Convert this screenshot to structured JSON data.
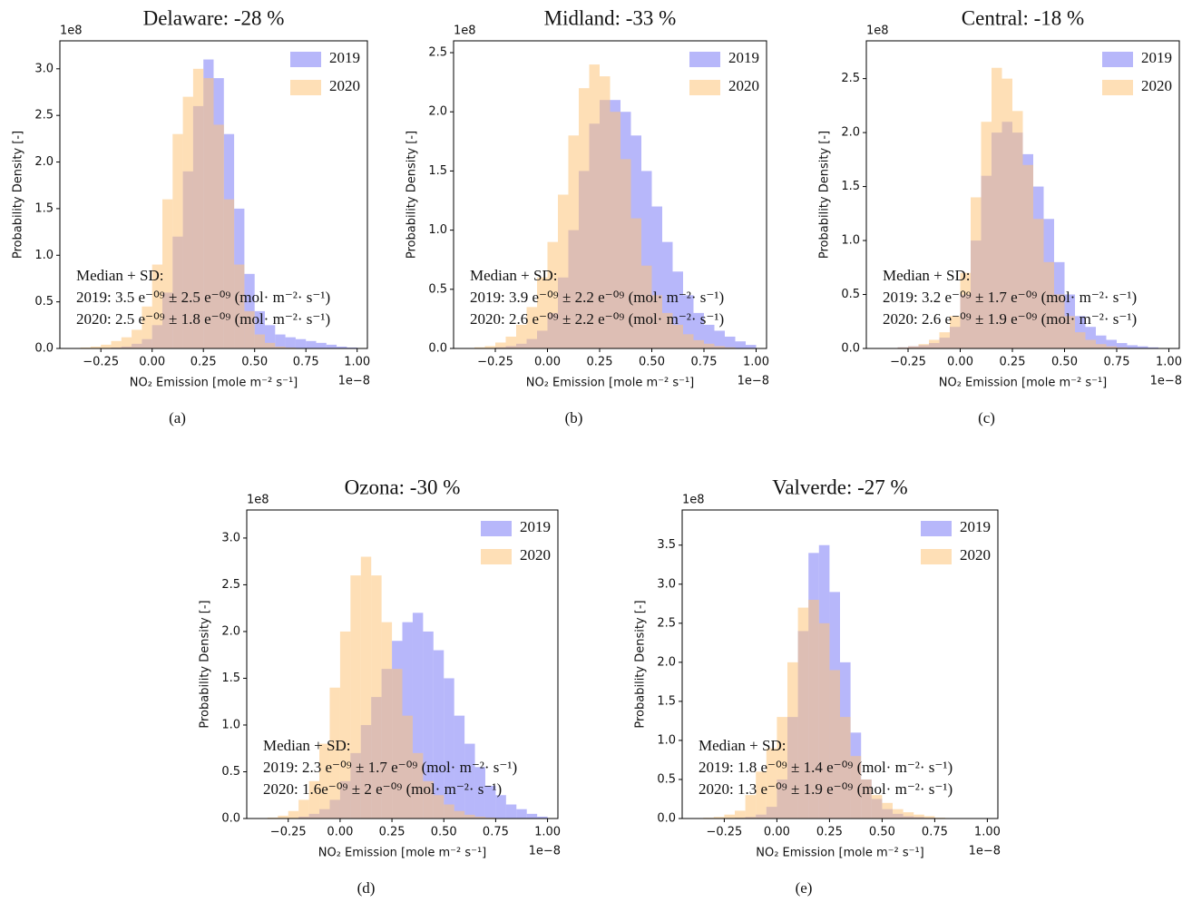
{
  "chart_data": [
    {
      "type": "histogram",
      "title": "Delaware: -28 %",
      "caption": "(a)",
      "x_label": "NO₂ Emission [mole m⁻² s⁻¹]",
      "y_label": "Probability Density [-]",
      "x_offset": "1e−8",
      "y_offset": "1e8",
      "legend": "upper right",
      "annotation": [
        "Median + SD:",
        "2019: 3.5 e⁻⁰⁹ ± 2.5 e⁻⁰⁹ (mol· m⁻²· s⁻¹)",
        "2020: 2.5 e⁻⁰⁹ ± 1.8 e⁻⁰⁹ (mol· m⁻²· s⁻¹)"
      ],
      "bins": [
        -0.4,
        -0.35,
        -0.3,
        -0.25,
        -0.2,
        -0.15,
        -0.1,
        -0.05,
        0,
        0.05,
        0.1,
        0.15,
        0.2,
        0.25,
        0.3,
        0.35,
        0.4,
        0.45,
        0.5,
        0.55,
        0.6,
        0.65,
        0.7,
        0.75,
        0.8,
        0.85,
        0.9,
        0.95,
        1.0
      ],
      "series": [
        {
          "name": "2019",
          "color": "#7b7bf5",
          "values": [
            0,
            0,
            0,
            0,
            0.01,
            0.02,
            0.05,
            0.1,
            0.25,
            0.6,
            1.2,
            1.9,
            2.6,
            3.1,
            2.9,
            2.3,
            1.5,
            0.8,
            0.4,
            0.25,
            0.15,
            0.12,
            0.1,
            0.08,
            0.06,
            0.04,
            0.02,
            0.01
          ]
        },
        {
          "name": "2020",
          "color": "#fdc57a",
          "values": [
            0,
            0.01,
            0.02,
            0.04,
            0.08,
            0.12,
            0.2,
            0.45,
            0.9,
            1.6,
            2.3,
            2.7,
            3.0,
            2.9,
            2.4,
            1.6,
            0.9,
            0.4,
            0.15,
            0.06,
            0.02,
            0.01,
            0,
            0,
            0,
            0,
            0,
            0
          ]
        }
      ],
      "xlim": [
        -0.45,
        1.05
      ],
      "ylim": [
        0,
        3.3
      ],
      "xticks": [
        {
          "value": -0.25,
          "label": "−0.25"
        },
        {
          "value": 0,
          "label": "0.00"
        },
        0.25,
        {
          "value": 0.5,
          "label": "0.50"
        },
        0.75,
        {
          "value": 1,
          "label": "1.00"
        }
      ],
      "yticks": [
        {
          "value": 0,
          "label": "0.0"
        },
        0.5,
        {
          "value": 1,
          "label": "1.0"
        },
        1.5,
        {
          "value": 2,
          "label": "2.0"
        },
        2.5,
        {
          "value": 3,
          "label": "3.0"
        }
      ]
    },
    {
      "type": "histogram",
      "title": "Midland: -33 %",
      "caption": "(b)",
      "x_label": "NO₂ Emission [mole m⁻² s⁻¹]",
      "y_label": "Probability Density [-]",
      "x_offset": "1e−8",
      "y_offset": "1e8",
      "legend": "upper right",
      "annotation": [
        "Median + SD:",
        "2019: 3.9 e⁻⁰⁹ ± 2.2 e⁻⁰⁹ (mol· m⁻²· s⁻¹)",
        "2020: 2.6 e⁻⁰⁹ ± 2.2 e⁻⁰⁹ (mol· m⁻²· s⁻¹)"
      ],
      "bins": [
        -0.4,
        -0.35,
        -0.3,
        -0.25,
        -0.2,
        -0.15,
        -0.1,
        -0.05,
        0,
        0.05,
        0.1,
        0.15,
        0.2,
        0.25,
        0.3,
        0.35,
        0.4,
        0.45,
        0.5,
        0.55,
        0.6,
        0.65,
        0.7,
        0.75,
        0.8,
        0.85,
        0.9,
        0.95,
        1.0
      ],
      "series": [
        {
          "name": "2019",
          "color": "#7b7bf5",
          "values": [
            0,
            0,
            0,
            0.01,
            0.02,
            0.04,
            0.08,
            0.15,
            0.3,
            0.6,
            1.0,
            1.5,
            1.9,
            2.1,
            2.1,
            2.0,
            1.8,
            1.5,
            1.2,
            0.9,
            0.65,
            0.45,
            0.3,
            0.2,
            0.15,
            0.1,
            0.06,
            0.03
          ]
        },
        {
          "name": "2020",
          "color": "#fdc57a",
          "values": [
            0,
            0.01,
            0.02,
            0.05,
            0.1,
            0.2,
            0.35,
            0.6,
            0.9,
            1.3,
            1.8,
            2.2,
            2.4,
            2.3,
            2.0,
            1.6,
            1.1,
            0.7,
            0.45,
            0.3,
            0.2,
            0.12,
            0.07,
            0.04,
            0.02,
            0.01,
            0,
            0
          ]
        }
      ],
      "xlim": [
        -0.45,
        1.05
      ],
      "ylim": [
        0,
        2.6
      ],
      "xticks": [
        {
          "value": -0.25,
          "label": "−0.25"
        },
        {
          "value": 0,
          "label": "0.00"
        },
        0.25,
        {
          "value": 0.5,
          "label": "0.50"
        },
        0.75,
        {
          "value": 1,
          "label": "1.00"
        }
      ],
      "yticks": [
        {
          "value": 0,
          "label": "0.0"
        },
        0.5,
        {
          "value": 1,
          "label": "1.0"
        },
        1.5,
        {
          "value": 2,
          "label": "2.0"
        },
        2.5
      ]
    },
    {
      "type": "histogram",
      "title": "Central: -18 %",
      "caption": "(c)",
      "x_label": "NO₂ Emission [mole m⁻² s⁻¹]",
      "y_label": "Probability Density [-]",
      "x_offset": "1e−8",
      "y_offset": "1e8",
      "legend": "upper right",
      "annotation": [
        "Median + SD:",
        "2019: 3.2 e⁻⁰⁹ ± 1.7 e⁻⁰⁹ (mol· m⁻²· s⁻¹)",
        "2020: 2.6 e⁻⁰⁹ ± 1.9 e⁻⁰⁹ (mol· m⁻²· s⁻¹)"
      ],
      "bins": [
        -0.4,
        -0.35,
        -0.3,
        -0.25,
        -0.2,
        -0.15,
        -0.1,
        -0.05,
        0,
        0.05,
        0.1,
        0.15,
        0.2,
        0.25,
        0.3,
        0.35,
        0.4,
        0.45,
        0.5,
        0.55,
        0.6,
        0.65,
        0.7,
        0.75,
        0.8,
        0.85,
        0.9,
        0.95,
        1.0
      ],
      "series": [
        {
          "name": "2019",
          "color": "#7b7bf5",
          "values": [
            0,
            0,
            0.01,
            0.02,
            0.03,
            0.05,
            0.1,
            0.2,
            0.5,
            1.0,
            1.6,
            2.0,
            2.1,
            2.0,
            1.8,
            1.5,
            1.2,
            0.8,
            0.5,
            0.3,
            0.2,
            0.12,
            0.08,
            0.05,
            0.03,
            0.02,
            0.01,
            0
          ]
        },
        {
          "name": "2020",
          "color": "#fdc57a",
          "values": [
            0,
            0,
            0.01,
            0.02,
            0.04,
            0.08,
            0.15,
            0.3,
            0.7,
            1.4,
            2.1,
            2.6,
            2.5,
            2.2,
            1.7,
            1.2,
            0.8,
            0.5,
            0.3,
            0.15,
            0.08,
            0.04,
            0.02,
            0.01,
            0,
            0,
            0,
            0
          ]
        }
      ],
      "xlim": [
        -0.45,
        1.05
      ],
      "ylim": [
        0,
        2.85
      ],
      "xticks": [
        {
          "value": -0.25,
          "label": "−0.25"
        },
        {
          "value": 0,
          "label": "0.00"
        },
        0.25,
        {
          "value": 0.5,
          "label": "0.50"
        },
        0.75,
        {
          "value": 1,
          "label": "1.00"
        }
      ],
      "yticks": [
        {
          "value": 0,
          "label": "0.0"
        },
        0.5,
        {
          "value": 1,
          "label": "1.0"
        },
        1.5,
        {
          "value": 2,
          "label": "2.0"
        },
        2.5
      ]
    },
    {
      "type": "histogram",
      "title": "Ozona: -30 %",
      "caption": "(d)",
      "x_label": "NO₂ Emission [mole m⁻² s⁻¹]",
      "y_label": "Probability Density [-]",
      "x_offset": "1e−8",
      "y_offset": "1e8",
      "legend": "upper right",
      "annotation": [
        "Median + SD:",
        "2019: 2.3 e⁻⁰⁹ ± 1.7 e⁻⁰⁹ (mol· m⁻²· s⁻¹)",
        "2020: 1.6e⁻⁰⁹ ± 2 e⁻⁰⁹ (mol· m⁻²· s⁻¹)"
      ],
      "bins": [
        -0.4,
        -0.35,
        -0.3,
        -0.25,
        -0.2,
        -0.15,
        -0.1,
        -0.05,
        0,
        0.05,
        0.1,
        0.15,
        0.2,
        0.25,
        0.3,
        0.35,
        0.4,
        0.45,
        0.5,
        0.55,
        0.6,
        0.65,
        0.7,
        0.75,
        0.8,
        0.85,
        0.9,
        0.95,
        1.0
      ],
      "series": [
        {
          "name": "2019",
          "color": "#7b7bf5",
          "values": [
            0,
            0,
            0,
            0,
            0.02,
            0.05,
            0.1,
            0.2,
            0.4,
            0.7,
            1.0,
            1.3,
            1.6,
            1.9,
            2.1,
            2.2,
            2.0,
            1.8,
            1.5,
            1.1,
            0.8,
            0.55,
            0.35,
            0.25,
            0.15,
            0.1,
            0.05,
            0.02
          ]
        },
        {
          "name": "2020",
          "color": "#fdc57a",
          "values": [
            0,
            0.01,
            0.03,
            0.08,
            0.2,
            0.4,
            0.8,
            1.4,
            2.0,
            2.6,
            2.8,
            2.6,
            2.1,
            1.6,
            1.1,
            0.7,
            0.4,
            0.25,
            0.15,
            0.08,
            0.04,
            0.02,
            0.01,
            0,
            0,
            0,
            0,
            0
          ]
        }
      ],
      "xlim": [
        -0.45,
        1.05
      ],
      "ylim": [
        0,
        3.3
      ],
      "xticks": [
        {
          "value": -0.25,
          "label": "−0.25"
        },
        {
          "value": 0,
          "label": "0.00"
        },
        0.25,
        {
          "value": 0.5,
          "label": "0.50"
        },
        0.75,
        {
          "value": 1,
          "label": "1.00"
        }
      ],
      "yticks": [
        {
          "value": 0,
          "label": "0.0"
        },
        0.5,
        {
          "value": 1,
          "label": "1.0"
        },
        1.5,
        {
          "value": 2,
          "label": "2.0"
        },
        2.5,
        {
          "value": 3,
          "label": "3.0"
        }
      ]
    },
    {
      "type": "histogram",
      "title": "Valverde: -27 %",
      "caption": "(e)",
      "x_label": "NO₂ Emission [mole m⁻² s⁻¹]",
      "y_label": "Probability Density [-]",
      "x_offset": "1e−8",
      "y_offset": "1e8",
      "legend": "upper right",
      "annotation": [
        "Median + SD:",
        "2019: 1.8 e⁻⁰⁹ ± 1.4 e⁻⁰⁹ (mol· m⁻²· s⁻¹)",
        "2020: 1.3 e⁻⁰⁹ ± 1.9 e⁻⁰⁹ (mol· m⁻²· s⁻¹)"
      ],
      "bins": [
        -0.4,
        -0.35,
        -0.3,
        -0.25,
        -0.2,
        -0.15,
        -0.1,
        -0.05,
        0,
        0.05,
        0.1,
        0.15,
        0.2,
        0.25,
        0.3,
        0.35,
        0.4,
        0.45,
        0.5,
        0.55,
        0.6,
        0.65,
        0.7,
        0.75,
        0.8,
        0.85,
        0.9,
        0.95,
        1.0
      ],
      "series": [
        {
          "name": "2019",
          "color": "#7b7bf5",
          "values": [
            0,
            0,
            0,
            0,
            0.01,
            0.02,
            0.05,
            0.15,
            0.5,
            1.3,
            2.4,
            3.4,
            3.5,
            2.9,
            2.0,
            1.1,
            0.5,
            0.25,
            0.12,
            0.06,
            0.03,
            0.02,
            0.01,
            0,
            0,
            0,
            0,
            0
          ]
        },
        {
          "name": "2020",
          "color": "#fdc57a",
          "values": [
            0,
            0.01,
            0.02,
            0.05,
            0.1,
            0.3,
            0.6,
            0.9,
            1.3,
            2.0,
            2.7,
            2.8,
            2.5,
            1.9,
            1.3,
            0.8,
            0.5,
            0.3,
            0.2,
            0.12,
            0.08,
            0.05,
            0.03,
            0.01,
            0,
            0,
            0,
            0
          ]
        }
      ],
      "xlim": [
        -0.45,
        1.05
      ],
      "ylim": [
        0,
        3.95
      ],
      "xticks": [
        {
          "value": -0.25,
          "label": "−0.25"
        },
        {
          "value": 0,
          "label": "0.00"
        },
        0.25,
        {
          "value": 0.5,
          "label": "0.50"
        },
        0.75,
        {
          "value": 1,
          "label": "1.00"
        }
      ],
      "yticks": [
        {
          "value": 0,
          "label": "0.0"
        },
        0.5,
        {
          "value": 1,
          "label": "1.0"
        },
        1.5,
        {
          "value": 2,
          "label": "2.0"
        },
        2.5,
        {
          "value": 3,
          "label": "3.0"
        },
        3.5
      ]
    }
  ]
}
